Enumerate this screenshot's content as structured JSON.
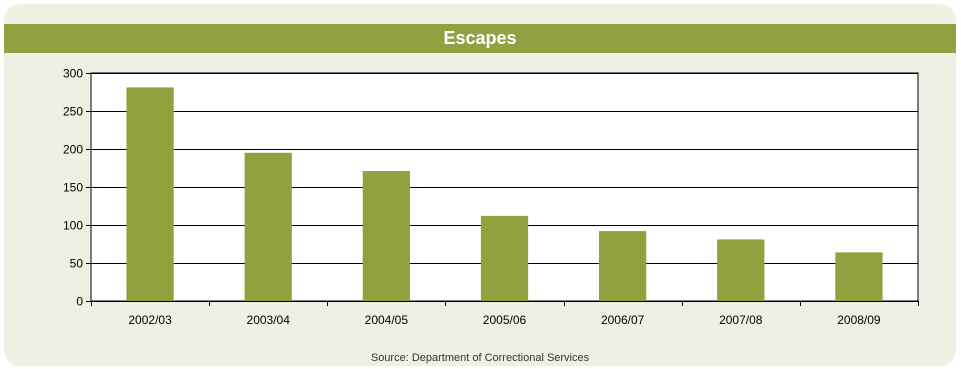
{
  "colors": {
    "panel_bg": "#eef0e3",
    "title_bg": "#93a042",
    "bar": "#93a03e"
  },
  "chart_data": {
    "type": "bar",
    "title": "Escapes",
    "categories": [
      "2002/03",
      "2003/04",
      "2004/05",
      "2005/06",
      "2006/07",
      "2007/08",
      "2008/09"
    ],
    "values": [
      281,
      195,
      171,
      112,
      92,
      81,
      64
    ],
    "ylim": [
      0,
      300
    ],
    "yticks": [
      0,
      50,
      100,
      150,
      200,
      250,
      300
    ],
    "xlabel": "",
    "ylabel": "",
    "grid": true,
    "legend": "none",
    "source": "Source: Department of Correctional Services"
  }
}
